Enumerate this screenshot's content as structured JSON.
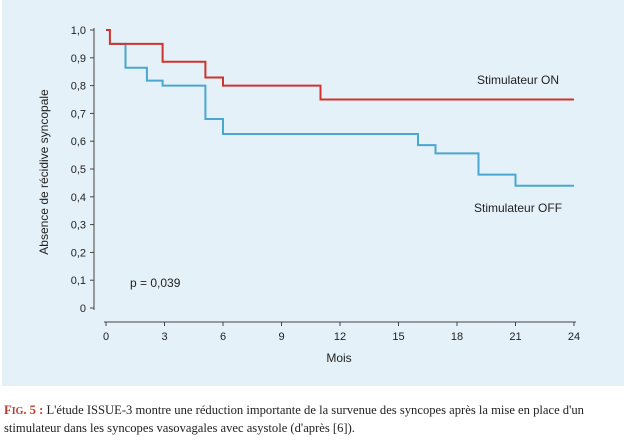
{
  "chart_data": {
    "type": "line",
    "subtype": "step",
    "title": "",
    "xlabel": "Mois",
    "ylabel": "Absence de récidive syncopale",
    "xlim": [
      0,
      24
    ],
    "ylim": [
      0,
      1
    ],
    "xticks": [
      0,
      3,
      6,
      9,
      12,
      15,
      18,
      21,
      24
    ],
    "xtick_labels": [
      "0",
      "3",
      "6",
      "9",
      "12",
      "15",
      "18",
      "21",
      "24"
    ],
    "yticks": [
      0,
      0.1,
      0.2,
      0.3,
      0.4,
      0.5,
      0.6,
      0.7,
      0.8,
      0.9,
      1.0
    ],
    "ytick_labels": [
      "0",
      "0,1",
      "0,2",
      "0,3",
      "0,4",
      "0,5",
      "0,6",
      "0,7",
      "0,8",
      "0,9",
      "1,0"
    ],
    "grid": false,
    "annotation": "p = 0,039",
    "series": [
      {
        "name": "Stimulateur ON",
        "color": "#d2322d",
        "points": [
          [
            0,
            1.0
          ],
          [
            0.2,
            1.0
          ],
          [
            0.2,
            0.95
          ],
          [
            2.9,
            0.95
          ],
          [
            2.9,
            0.886
          ],
          [
            5.1,
            0.886
          ],
          [
            5.1,
            0.829
          ],
          [
            6.0,
            0.829
          ],
          [
            6.0,
            0.8
          ],
          [
            11.0,
            0.8
          ],
          [
            11.0,
            0.75
          ],
          [
            24,
            0.75
          ]
        ]
      },
      {
        "name": "Stimulateur OFF",
        "color": "#4aa7cf",
        "points": [
          [
            0.2,
            0.95
          ],
          [
            1.0,
            0.95
          ],
          [
            1.0,
            0.864
          ],
          [
            2.1,
            0.864
          ],
          [
            2.1,
            0.818
          ],
          [
            2.9,
            0.818
          ],
          [
            2.9,
            0.8
          ],
          [
            5.1,
            0.8
          ],
          [
            5.1,
            0.68
          ],
          [
            6.0,
            0.68
          ],
          [
            6.0,
            0.626
          ],
          [
            16.0,
            0.626
          ],
          [
            16.0,
            0.586
          ],
          [
            16.9,
            0.586
          ],
          [
            16.9,
            0.556
          ],
          [
            19.1,
            0.556
          ],
          [
            19.1,
            0.48
          ],
          [
            21.0,
            0.48
          ],
          [
            21.0,
            0.44
          ],
          [
            24,
            0.44
          ]
        ]
      }
    ]
  },
  "caption": {
    "label_first": "F",
    "label_rest": "IG",
    "label_num": ". 5 :",
    "text": " L'étude ISSUE-3 montre une réduction importante de la survenue des syncopes après la mise en place d'un stimulateur dans les syncopes vasovagales avec asystole (d'après [6])."
  }
}
